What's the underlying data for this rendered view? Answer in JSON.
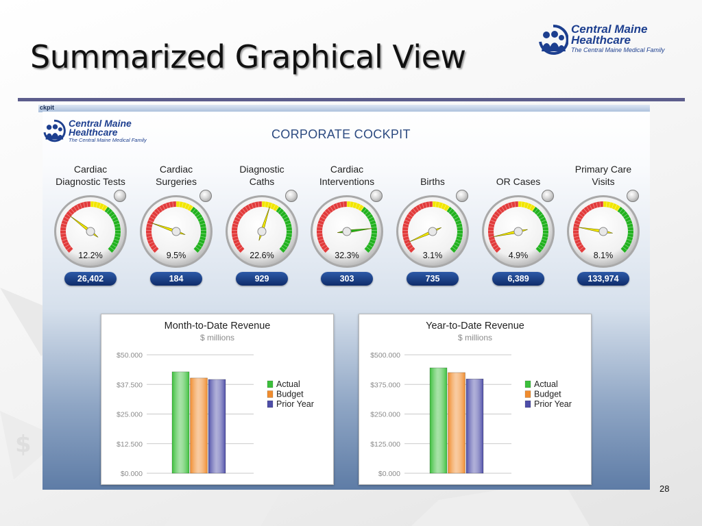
{
  "slide": {
    "title": "Summarized Graphical View",
    "page_number": "28"
  },
  "logo": {
    "line1": "Central Maine",
    "line2": "Healthcare",
    "tagline": "The Central Maine Medical Family",
    "icon": "people-icon",
    "color": "#1d3f8f"
  },
  "dashboard": {
    "window_caption": "ckpit",
    "title": "CORPORATE COCKPIT",
    "gauges": [
      {
        "label_line1": "Cardiac",
        "label_line2": "Diagnostic Tests",
        "percent_label": "12.2%",
        "percent": 12.2,
        "count": "26,402",
        "status_light": "gray"
      },
      {
        "label_line1": "Cardiac",
        "label_line2": "Surgeries",
        "percent_label": "9.5%",
        "percent": 9.5,
        "count": "184",
        "status_light": "gray"
      },
      {
        "label_line1": "Diagnostic",
        "label_line2": "Caths",
        "percent_label": "22.6%",
        "percent": 22.6,
        "count": "929",
        "status_light": "gray"
      },
      {
        "label_line1": "Cardiac",
        "label_line2": "Interventions",
        "percent_label": "32.3%",
        "percent": 32.3,
        "count": "303",
        "status_light": "gray"
      },
      {
        "label_line1": "",
        "label_line2": "Births",
        "percent_label": "3.1%",
        "percent": 3.1,
        "count": "735",
        "status_light": "gray"
      },
      {
        "label_line1": "",
        "label_line2": "OR Cases",
        "percent_label": "4.9%",
        "percent": 4.9,
        "count": "6,389",
        "status_light": "gray"
      },
      {
        "label_line1": "Primary Care",
        "label_line2": "Visits",
        "percent_label": "8.1%",
        "percent": 8.1,
        "count": "133,974",
        "status_light": "gray"
      }
    ],
    "gauge_colors": {
      "red": "#e23b3b",
      "yellow": "#f2e600",
      "green": "#22b21f"
    }
  },
  "chart_data": [
    {
      "type": "bar",
      "title": "Month-to-Date Revenue",
      "subtitle": "$ millions",
      "categories": [
        ""
      ],
      "series": [
        {
          "name": "Actual",
          "values": [
            42.8
          ],
          "color": "#3cbf3c"
        },
        {
          "name": "Budget",
          "values": [
            40.2
          ],
          "color": "#f08c2e"
        },
        {
          "name": "Prior Year",
          "values": [
            39.6
          ],
          "color": "#4e4ea8"
        }
      ],
      "ylim": [
        0,
        50
      ],
      "yticks": [
        "$0.000",
        "$12.500",
        "$25.000",
        "$37.500",
        "$50.000"
      ],
      "ytick_values": [
        0,
        12.5,
        25,
        37.5,
        50
      ],
      "grid": true,
      "legend": "right"
    },
    {
      "type": "bar",
      "title": "Year-to-Date Revenue",
      "subtitle": "$ millions",
      "categories": [
        ""
      ],
      "series": [
        {
          "name": "Actual",
          "values": [
            445
          ],
          "color": "#3cbf3c"
        },
        {
          "name": "Budget",
          "values": [
            425
          ],
          "color": "#f08c2e"
        },
        {
          "name": "Prior Year",
          "values": [
            398
          ],
          "color": "#4e4ea8"
        }
      ],
      "ylim": [
        0,
        500
      ],
      "yticks": [
        "$0.000",
        "$125.000",
        "$250.000",
        "$375.000",
        "$500.000"
      ],
      "ytick_values": [
        0,
        125,
        250,
        375,
        500
      ],
      "grid": true,
      "legend": "right"
    }
  ]
}
